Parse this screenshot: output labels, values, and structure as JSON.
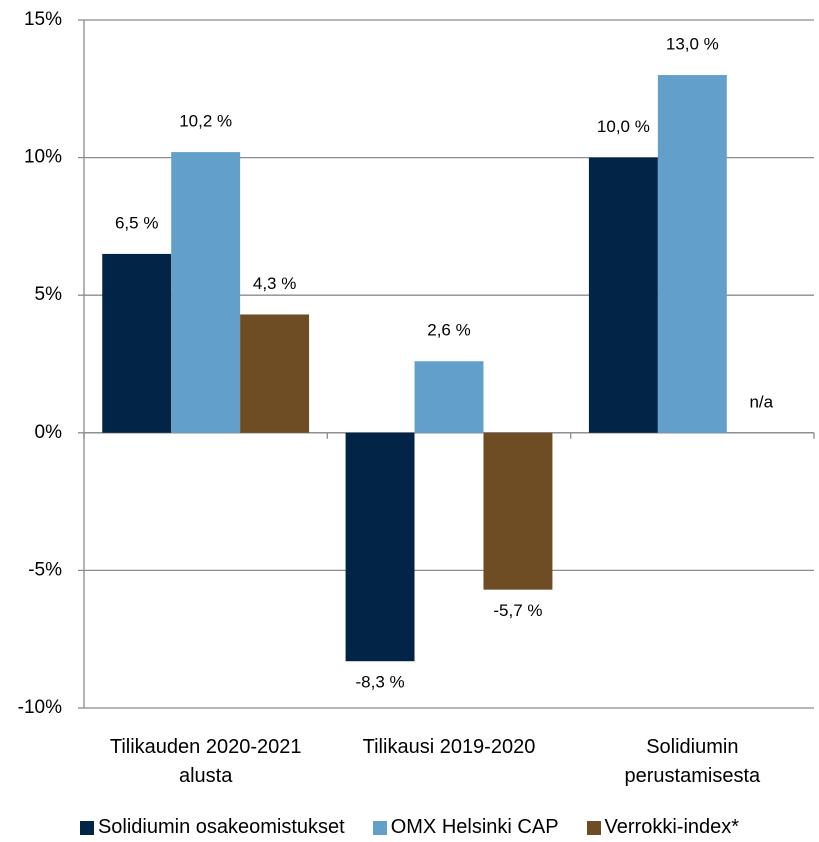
{
  "chart_data": {
    "type": "bar",
    "categories": [
      "Tilikauden 2020-2021 alusta",
      "Tilikausi 2019-2020",
      "Solidiumin perustamisesta"
    ],
    "series": [
      {
        "name": "Solidiumin osakeomistukset",
        "color": "#012447",
        "values": [
          6.5,
          -8.3,
          10.0
        ],
        "value_labels": [
          "6,5 %",
          "-8,3 %",
          "10,0 %"
        ]
      },
      {
        "name": "OMX Helsinki CAP",
        "color": "#62a0c9",
        "values": [
          10.2,
          2.6,
          13.0
        ],
        "value_labels": [
          "10,2 %",
          "2,6 %",
          "13,0 %"
        ]
      },
      {
        "name": "Verrokki-index*",
        "color": "#6e4c24",
        "values": [
          4.3,
          -5.7,
          null
        ],
        "value_labels": [
          "4,3 %",
          "-5,7 %",
          "n/a"
        ]
      }
    ],
    "ylim": [
      -10,
      15
    ],
    "yticks": [
      {
        "value": -10,
        "label": "-10%"
      },
      {
        "value": -5,
        "label": "-5%"
      },
      {
        "value": 0,
        "label": "0%"
      },
      {
        "value": 5,
        "label": "5%"
      },
      {
        "value": 10,
        "label": "10%"
      },
      {
        "value": 15,
        "label": "15%"
      }
    ],
    "grid": true,
    "legend": "bottom"
  }
}
